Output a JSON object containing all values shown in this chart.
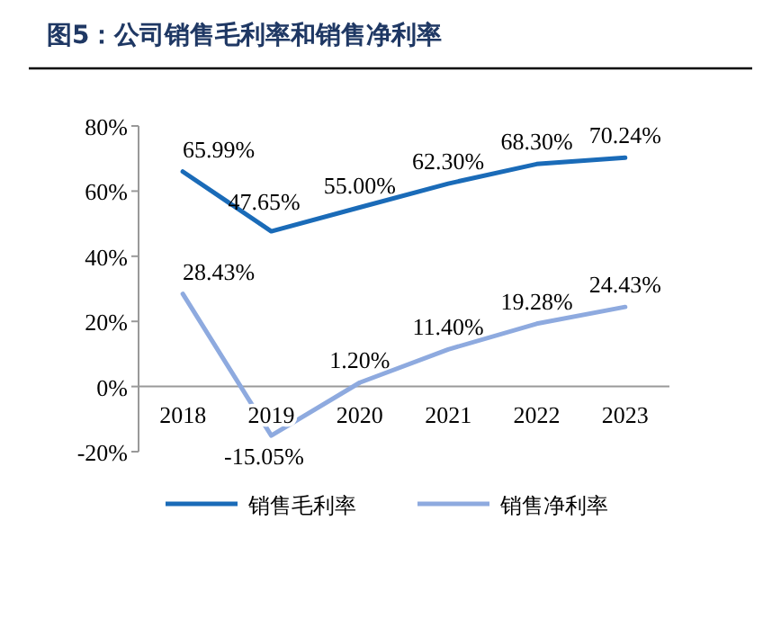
{
  "chart_data": {
    "type": "line",
    "title": "图5：公司销售毛利率和销售净利率",
    "categories": [
      "2018",
      "2019",
      "2020",
      "2021",
      "2022",
      "2023"
    ],
    "series": [
      {
        "name": "销售毛利率",
        "color": "#1a6bb8",
        "values": [
          65.99,
          47.65,
          55.0,
          62.3,
          68.3,
          70.24
        ],
        "value_labels": [
          "65.99%",
          "47.65%",
          "55.00%",
          "62.30%",
          "68.30%",
          "70.24%"
        ]
      },
      {
        "name": "销售净利率",
        "color": "#8eaadf",
        "values": [
          28.43,
          -15.05,
          1.2,
          11.4,
          19.28,
          24.43
        ],
        "value_labels": [
          "28.43%",
          "-15.05%",
          "1.20%",
          "11.40%",
          "19.28%",
          "24.43%"
        ]
      }
    ],
    "ylim": [
      -20,
      80
    ],
    "yticks": [
      {
        "value": -20,
        "label": "-20%"
      },
      {
        "value": 0,
        "label": "0%"
      },
      {
        "value": 20,
        "label": "20%"
      },
      {
        "value": 40,
        "label": "40%"
      },
      {
        "value": 60,
        "label": "60%"
      },
      {
        "value": 80,
        "label": "80%"
      }
    ],
    "grid": false,
    "legend": "bottom",
    "marker": "none",
    "line_style": "solid"
  }
}
